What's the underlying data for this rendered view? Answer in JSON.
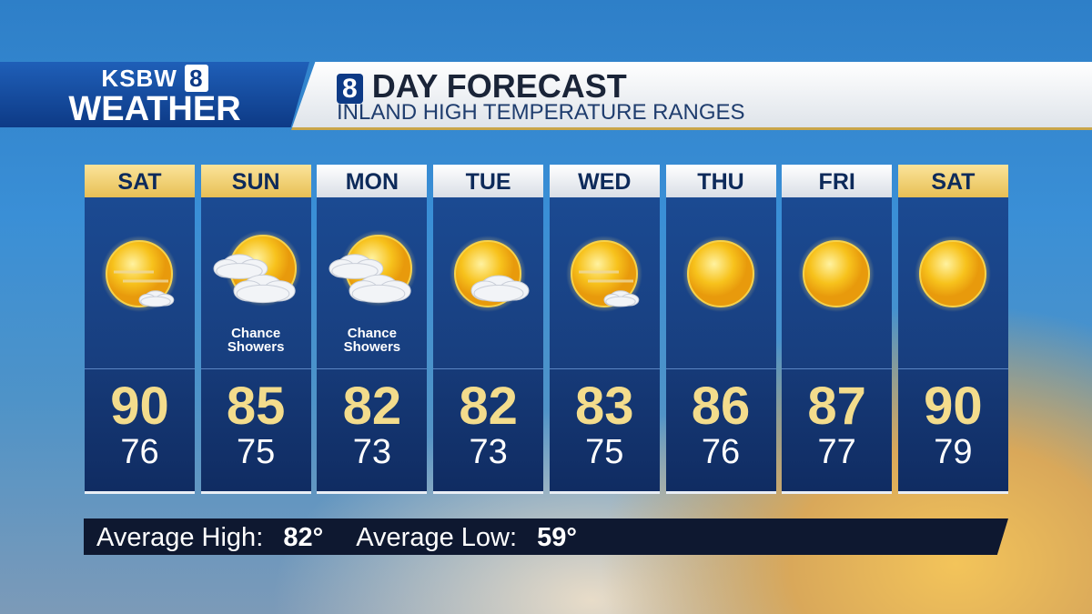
{
  "logo": {
    "station": "KSBW",
    "channel": "8",
    "section": "WEATHER"
  },
  "header": {
    "badge": "8",
    "title": "DAY FORECAST",
    "subtitle": "INLAND HIGH TEMPERATURE RANGES"
  },
  "days": [
    {
      "day": "SAT",
      "highlight": true,
      "icon": "sun-haze",
      "high": 90,
      "low": 76
    },
    {
      "day": "SUN",
      "highlight": true,
      "icon": "sun-cloud",
      "condition": "Chance Showers",
      "high": 85,
      "low": 75
    },
    {
      "day": "MON",
      "highlight": false,
      "icon": "sun-cloud",
      "condition": "Chance Showers",
      "high": 82,
      "low": 73
    },
    {
      "day": "TUE",
      "highlight": false,
      "icon": "sun-small-cloud",
      "high": 82,
      "low": 73
    },
    {
      "day": "WED",
      "highlight": false,
      "icon": "sun-haze",
      "high": 83,
      "low": 75
    },
    {
      "day": "THU",
      "highlight": false,
      "icon": "sun",
      "high": 86,
      "low": 76
    },
    {
      "day": "FRI",
      "highlight": false,
      "icon": "sun",
      "high": 87,
      "low": 77
    },
    {
      "day": "SAT",
      "highlight": true,
      "icon": "sun",
      "high": 90,
      "low": 79
    }
  ],
  "footer": {
    "avg_high_label": "Average High:",
    "avg_high": "82°",
    "avg_low_label": "Average Low:",
    "avg_low": "59°"
  }
}
